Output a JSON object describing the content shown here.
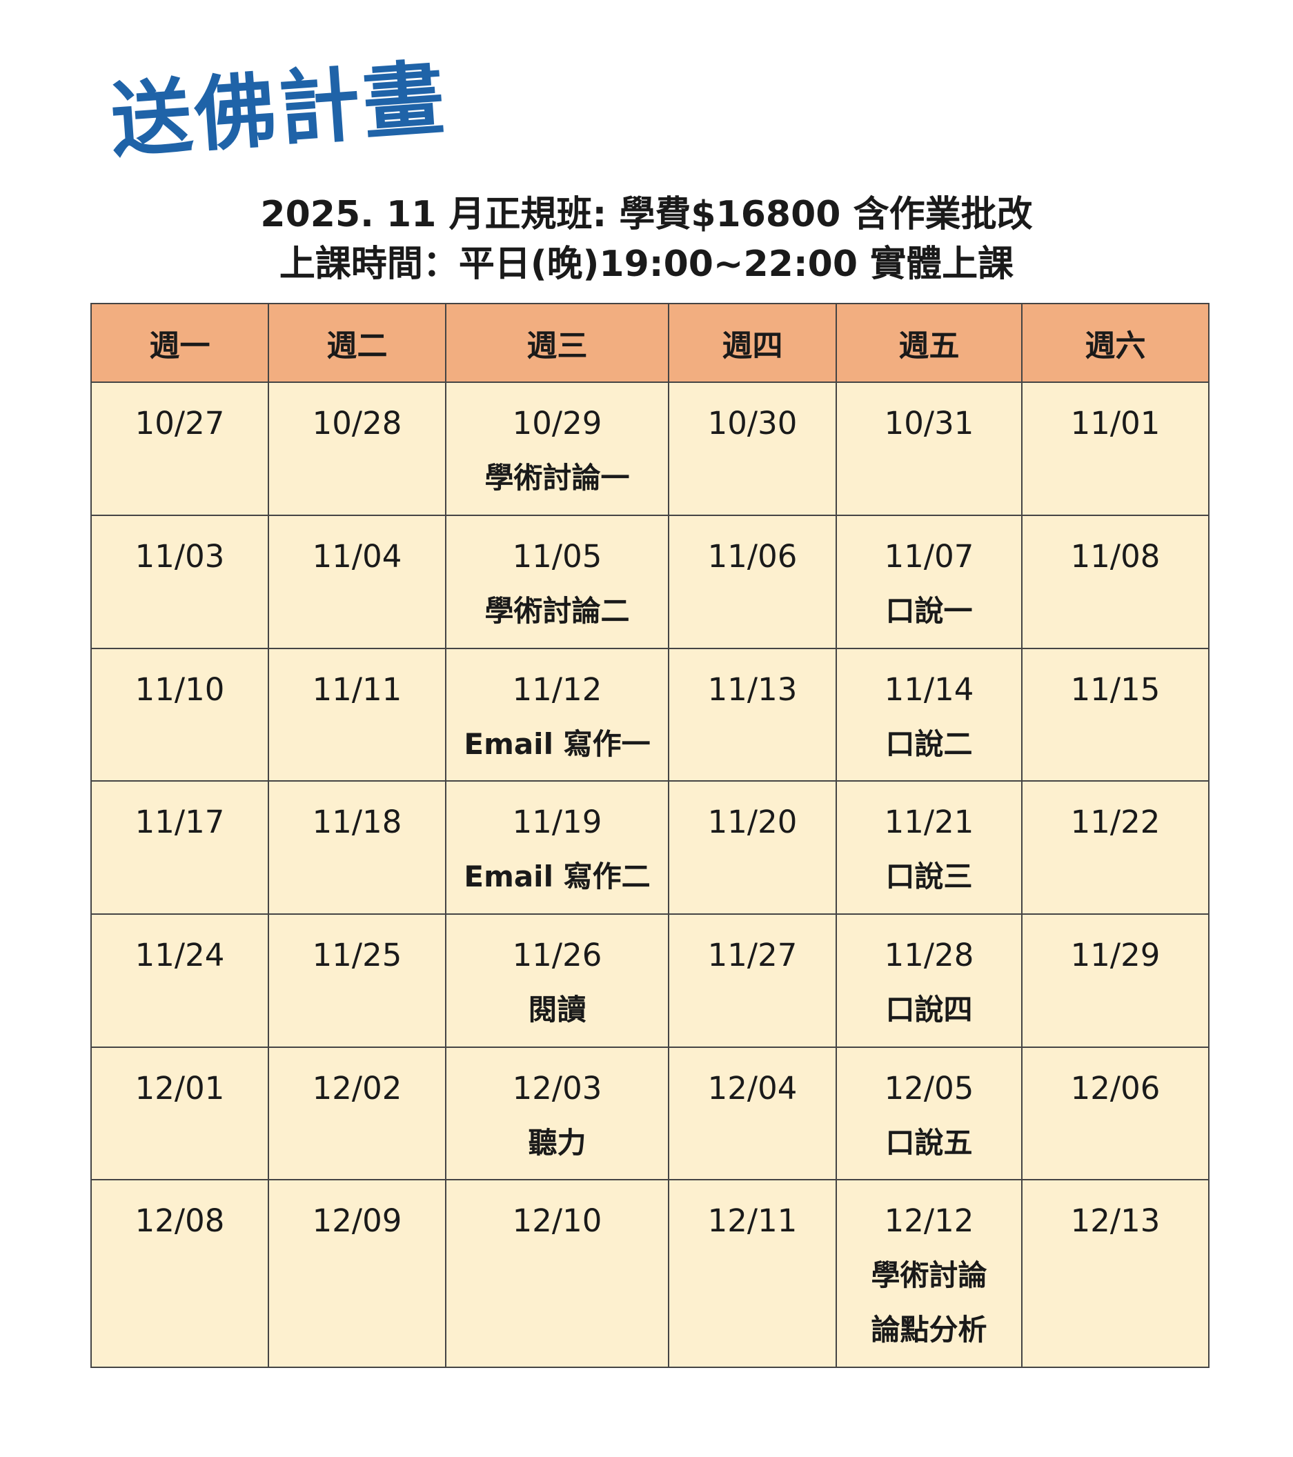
{
  "logo": "送佛計畫",
  "title": [
    "2025. 11 月正規班: 學費$16800 含作業批改",
    "上課時間：平日(晚)19:00~22:00 實體上課"
  ],
  "table": {
    "header": [
      "週一",
      "週二",
      "週三",
      "週四",
      "週五",
      "週六"
    ],
    "rows": [
      [
        [
          "10/27"
        ],
        [
          "10/28"
        ],
        [
          "10/29",
          "學術討論一"
        ],
        [
          "10/30"
        ],
        [
          "10/31"
        ],
        [
          "11/01"
        ]
      ],
      [
        [
          "11/03"
        ],
        [
          "11/04"
        ],
        [
          "11/05",
          "學術討論二"
        ],
        [
          "11/06"
        ],
        [
          "11/07",
          "口說一"
        ],
        [
          "11/08"
        ]
      ],
      [
        [
          "11/10"
        ],
        [
          "11/11"
        ],
        [
          "11/12",
          "Email 寫作一"
        ],
        [
          "11/13"
        ],
        [
          "11/14",
          "口說二"
        ],
        [
          "11/15"
        ]
      ],
      [
        [
          "11/17"
        ],
        [
          "11/18"
        ],
        [
          "11/19",
          "Email 寫作二"
        ],
        [
          "11/20"
        ],
        [
          "11/21",
          "口說三"
        ],
        [
          "11/22"
        ]
      ],
      [
        [
          "11/24"
        ],
        [
          "11/25"
        ],
        [
          "11/26",
          "閱讀"
        ],
        [
          "11/27"
        ],
        [
          "11/28",
          "口說四"
        ],
        [
          "11/29"
        ]
      ],
      [
        [
          "12/01"
        ],
        [
          "12/02"
        ],
        [
          "12/03",
          "聽力"
        ],
        [
          "12/04"
        ],
        [
          "12/05",
          "口說五"
        ],
        [
          "12/06"
        ]
      ],
      [
        [
          "12/08"
        ],
        [
          "12/09"
        ],
        [
          "12/10"
        ],
        [
          "12/11"
        ],
        [
          "12/12",
          "學術討論",
          "論點分析"
        ],
        [
          "12/13"
        ]
      ]
    ]
  }
}
